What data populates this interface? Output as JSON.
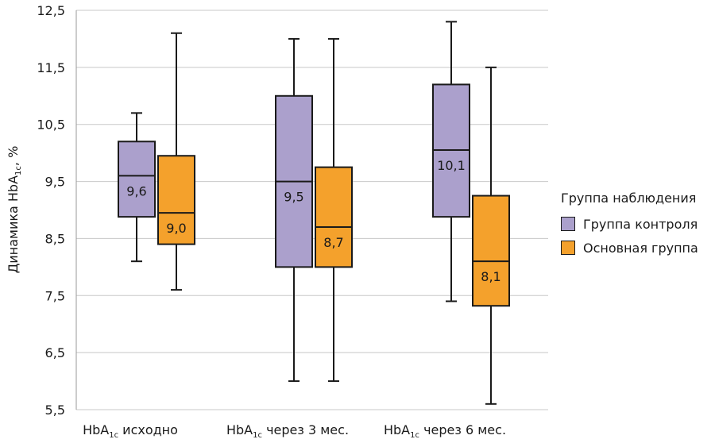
{
  "chart_data": {
    "type": "boxplot",
    "ylabel": {
      "main": "Динамика HbA",
      "sub": "1c",
      "rest": ", %"
    },
    "ylim": [
      5.5,
      12.5
    ],
    "yticks": [
      "5,5",
      "6,5",
      "7,5",
      "8,5",
      "9,5",
      "10,5",
      "11,5",
      "12,5"
    ],
    "ytick_values": [
      5.5,
      6.5,
      7.5,
      8.5,
      9.5,
      10.5,
      11.5,
      12.5
    ],
    "grid": "horizontal",
    "legend_position": "right",
    "categories": [
      {
        "main": "HbA",
        "sub": "1c",
        "rest": " исходно"
      },
      {
        "main": "HbA",
        "sub": "1c",
        "rest": " через 3 мес."
      },
      {
        "main": "HbA",
        "sub": "1c",
        "rest": " через 6 мес."
      }
    ],
    "series": [
      {
        "name": "Группа контроля",
        "color": "#aba0cc",
        "boxes": [
          {
            "min": 8.1,
            "q1": 8.88,
            "median": 9.6,
            "q3": 10.2,
            "max": 10.7,
            "label": "9,6"
          },
          {
            "min": 6.0,
            "q1": 8.0,
            "median": 9.5,
            "q3": 11.0,
            "max": 12.0,
            "label": "9,5"
          },
          {
            "min": 7.4,
            "q1": 8.88,
            "median": 10.05,
            "q3": 11.2,
            "max": 12.3,
            "label": "10,1"
          }
        ]
      },
      {
        "name": "Основная группа",
        "color": "#f4a12c",
        "boxes": [
          {
            "min": 7.6,
            "q1": 8.4,
            "median": 8.95,
            "q3": 9.95,
            "max": 12.1,
            "label": "9,0"
          },
          {
            "min": 6.0,
            "q1": 8.0,
            "median": 8.7,
            "q3": 9.75,
            "max": 12.0,
            "label": "8,7"
          },
          {
            "min": 5.6,
            "q1": 7.32,
            "median": 8.1,
            "q3": 9.25,
            "max": 11.5,
            "label": "8,1"
          }
        ]
      }
    ],
    "legend": {
      "title": "Группа наблюдения"
    }
  }
}
